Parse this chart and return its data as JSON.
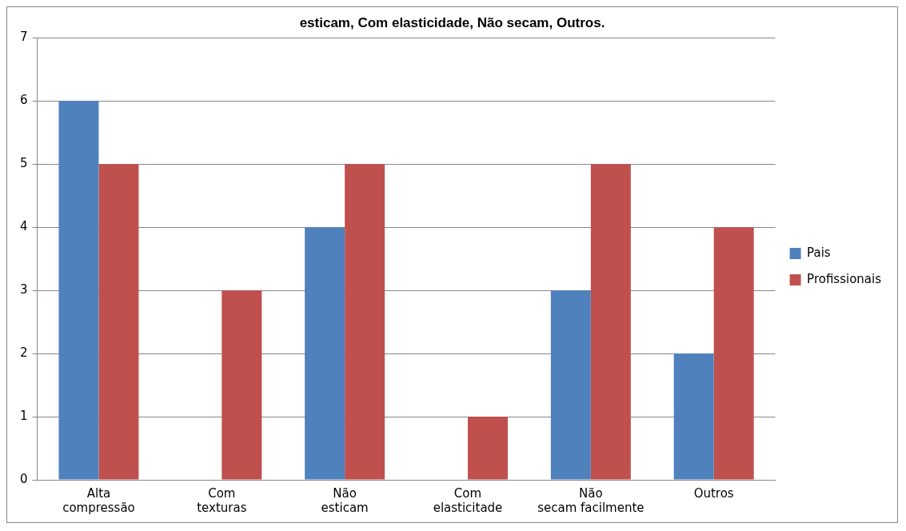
{
  "chart_data": {
    "type": "bar",
    "title": "esticam, Com elasticidade, Não secam, Outros.",
    "categories": [
      "Alta compressão",
      "Com texturas",
      "Não esticam",
      "Com elasticitade",
      "Não secam facilmente",
      "Outros"
    ],
    "series": [
      {
        "name": "Pais",
        "color": "#4f81bd",
        "values": [
          6,
          0,
          4,
          0,
          3,
          2
        ]
      },
      {
        "name": "Profissionais",
        "color": "#c0504d",
        "values": [
          5,
          3,
          5,
          1,
          5,
          4
        ]
      }
    ],
    "ylim": [
      0,
      7
    ],
    "yticks": [
      0,
      1,
      2,
      3,
      4,
      5,
      6,
      7
    ],
    "grid": "y",
    "legend": "right"
  }
}
